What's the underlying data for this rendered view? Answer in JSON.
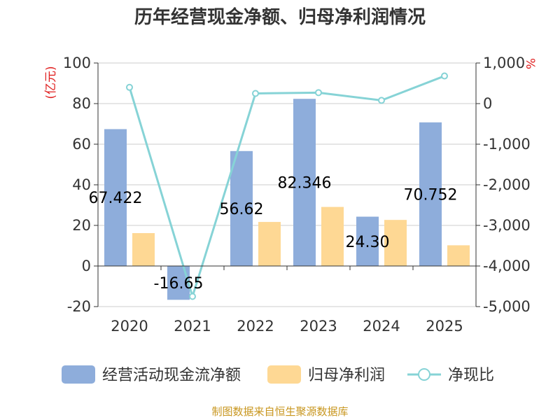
{
  "chart_data": {
    "type": "bar",
    "title": "历年经营现金净额、归母净利润情况",
    "categories": [
      "2020",
      "2021",
      "2022",
      "2023",
      "2024",
      "2025"
    ],
    "series": [
      {
        "name": "经营活动现金流净额",
        "type": "bar",
        "axis": "left",
        "color": "#8eaddb",
        "values": [
          67.422,
          -16.65,
          56.62,
          82.346,
          24.3,
          70.752
        ],
        "labels": [
          "67.422",
          "-16.65",
          "56.62",
          "82.346",
          "24.30",
          "70.752"
        ]
      },
      {
        "name": "归母净利润",
        "type": "bar",
        "axis": "left",
        "color": "#fed894",
        "values": [
          16.2,
          0,
          21.7,
          29.1,
          22.7,
          10.2
        ]
      },
      {
        "name": "净现比",
        "type": "line",
        "axis": "right",
        "color": "#86d3d6",
        "values": [
          400,
          -4750,
          250,
          270,
          80,
          680
        ]
      }
    ],
    "left_axis": {
      "unit": "(亿元)",
      "min": -20,
      "max": 100,
      "ticks": [
        "-20",
        "0",
        "20",
        "40",
        "60",
        "80",
        "100"
      ]
    },
    "right_axis": {
      "unit": "%",
      "min": -5000,
      "max": 1000,
      "ticks": [
        "-5,000",
        "-4,000",
        "-3,000",
        "-2,000",
        "-1,000",
        "0",
        "1,000"
      ]
    },
    "source": "制图数据来自恒生聚源数据库"
  }
}
